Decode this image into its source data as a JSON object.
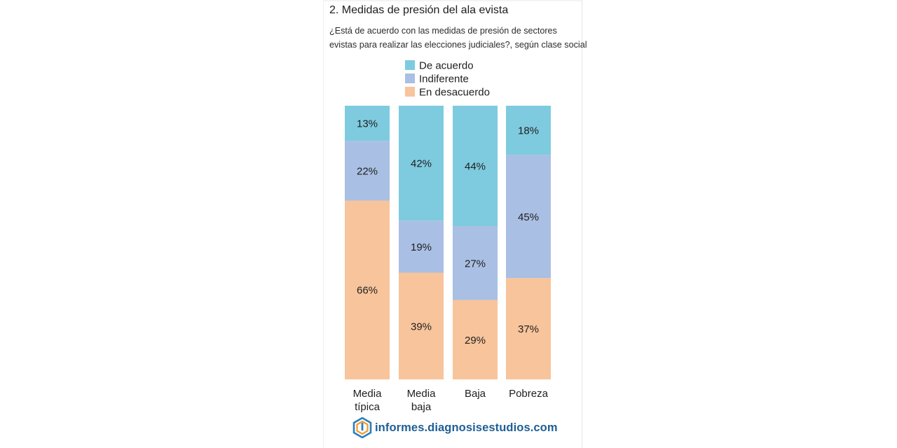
{
  "header": {
    "title": "2. Medidas de presión del ala evista",
    "subtitle_line1": "¿Está de acuerdo con las medidas de presión de sectores",
    "subtitle_line2": "evistas para realizar las elecciones judiciales?, según clase social"
  },
  "chart_data": {
    "type": "bar",
    "stacked": true,
    "orientation": "vertical",
    "categories": [
      [
        "Media",
        "típica"
      ],
      [
        "Media",
        "baja"
      ],
      [
        "Baja"
      ],
      [
        "Pobreza"
      ]
    ],
    "series": [
      {
        "name": "De acuerdo",
        "values": [
          13,
          42,
          44,
          18
        ],
        "color": "#7ecbdf"
      },
      {
        "name": "Indiferente",
        "values": [
          22,
          19,
          27,
          45
        ],
        "color": "#a9bfe3"
      },
      {
        "name": "En desacuerdo",
        "values": [
          66,
          39,
          29,
          37
        ],
        "color": "#f8c49b"
      }
    ],
    "value_suffix": "%",
    "legend_position": "top",
    "grid": false
  },
  "footer": {
    "brand": "informes.diagnosisestudios.com",
    "logo_icon": "diagnosis-logo-icon"
  }
}
